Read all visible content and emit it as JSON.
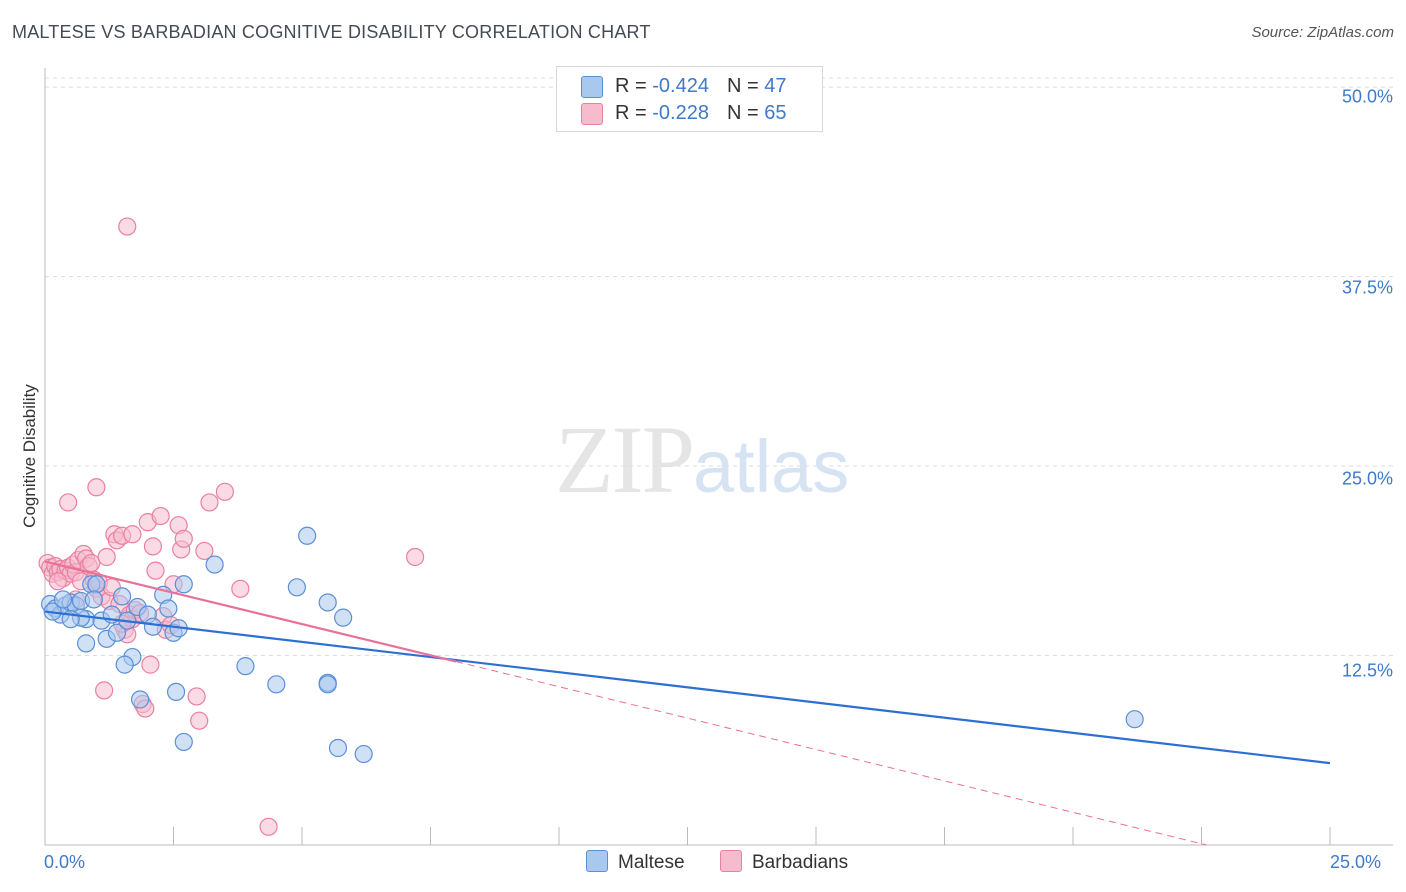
{
  "title": "MALTESE VS BARBADIAN COGNITIVE DISABILITY CORRELATION CHART",
  "source": "Source: ZipAtlas.com",
  "watermark": {
    "zip": "ZIP",
    "atlas": "atlas"
  },
  "legend": {
    "rows": [
      {
        "r_label": "R = ",
        "r_value": "-0.424",
        "n_label": "N = ",
        "n_value": "47"
      },
      {
        "r_label": "R = ",
        "r_value": "-0.228",
        "n_label": "N = ",
        "n_value": "65"
      }
    ]
  },
  "colors": {
    "maltese_fill": "#a9c8ee",
    "maltese_stroke": "#5b8fd6",
    "maltese_line": "#2d6fd2",
    "barbadian_fill": "#f6bccd",
    "barbadian_stroke": "#e9809f",
    "barbadian_line": "#e8709a",
    "tick": "#3f7ac9",
    "grid": "#dddddd"
  },
  "chart_data": {
    "type": "scatter",
    "title": "MALTESE VS BARBADIAN COGNITIVE DISABILITY CORRELATION CHART",
    "xlabel": "",
    "ylabel": "Cognitive Disability",
    "xlim": [
      0,
      25
    ],
    "ylim": [
      0,
      50
    ],
    "x_tick_labels": [
      "0.0%",
      "25.0%"
    ],
    "y_ticks": [
      12.5,
      25.0,
      37.5,
      50.0
    ],
    "y_tick_labels": [
      "12.5%",
      "25.0%",
      "37.5%",
      "50.0%"
    ],
    "grid": true,
    "legend_position": "bottom",
    "series": [
      {
        "name": "Maltese",
        "r": -0.424,
        "n": 47,
        "trend": {
          "x": [
            0,
            25
          ],
          "y": [
            15.4,
            5.4
          ],
          "style": "solid"
        },
        "points": [
          [
            0.1,
            15.9
          ],
          [
            0.2,
            15.6
          ],
          [
            0.3,
            15.2
          ],
          [
            0.4,
            15.8
          ],
          [
            0.5,
            16.0
          ],
          [
            0.6,
            15.8
          ],
          [
            0.7,
            16.1
          ],
          [
            0.8,
            14.9
          ],
          [
            0.7,
            15.0
          ],
          [
            0.9,
            17.2
          ],
          [
            1.0,
            17.2
          ],
          [
            1.1,
            14.8
          ],
          [
            1.2,
            13.6
          ],
          [
            0.8,
            13.3
          ],
          [
            1.3,
            15.2
          ],
          [
            1.5,
            16.4
          ],
          [
            1.4,
            14.0
          ],
          [
            1.6,
            14.8
          ],
          [
            1.7,
            12.4
          ],
          [
            1.55,
            11.9
          ],
          [
            1.8,
            15.7
          ],
          [
            2.0,
            15.2
          ],
          [
            2.1,
            14.4
          ],
          [
            2.3,
            16.5
          ],
          [
            2.5,
            14.0
          ],
          [
            2.4,
            15.6
          ],
          [
            2.6,
            14.3
          ],
          [
            2.7,
            17.2
          ],
          [
            3.3,
            18.5
          ],
          [
            2.55,
            10.1
          ],
          [
            1.85,
            9.6
          ],
          [
            2.7,
            6.8
          ],
          [
            3.9,
            11.8
          ],
          [
            4.5,
            10.6
          ],
          [
            4.9,
            17.0
          ],
          [
            5.1,
            20.4
          ],
          [
            5.5,
            10.7
          ],
          [
            5.5,
            10.6
          ],
          [
            5.5,
            16.0
          ],
          [
            5.8,
            15.0
          ],
          [
            5.7,
            6.4
          ],
          [
            6.2,
            6.0
          ],
          [
            0.15,
            15.4
          ],
          [
            0.35,
            16.2
          ],
          [
            21.2,
            8.3
          ],
          [
            0.5,
            14.9
          ],
          [
            0.95,
            16.2
          ]
        ]
      },
      {
        "name": "Barbadians",
        "r": -0.228,
        "n": 65,
        "trend": {
          "x": [
            0,
            8
          ],
          "y": [
            18.7,
            12.1
          ],
          "style": "solid"
        },
        "trend_extension": {
          "x": [
            8,
            22.6
          ],
          "y": [
            12.1,
            0.0
          ],
          "style": "dashed"
        },
        "points": [
          [
            0.05,
            18.6
          ],
          [
            0.1,
            18.3
          ],
          [
            0.15,
            17.9
          ],
          [
            0.2,
            18.4
          ],
          [
            0.25,
            18.0
          ],
          [
            0.3,
            18.2
          ],
          [
            0.35,
            17.6
          ],
          [
            0.4,
            18.1
          ],
          [
            0.45,
            18.3
          ],
          [
            0.5,
            17.9
          ],
          [
            0.55,
            18.5
          ],
          [
            0.6,
            18.0
          ],
          [
            0.65,
            18.8
          ],
          [
            0.7,
            17.4
          ],
          [
            0.75,
            19.2
          ],
          [
            0.8,
            18.9
          ],
          [
            0.85,
            18.4
          ],
          [
            0.9,
            18.6
          ],
          [
            0.95,
            17.5
          ],
          [
            1.0,
            16.9
          ],
          [
            1.05,
            17.3
          ],
          [
            1.1,
            16.4
          ],
          [
            1.2,
            19.0
          ],
          [
            1.25,
            16.1
          ],
          [
            1.3,
            17.0
          ],
          [
            1.35,
            20.5
          ],
          [
            1.4,
            20.1
          ],
          [
            1.45,
            15.9
          ],
          [
            1.5,
            20.4
          ],
          [
            1.55,
            14.2
          ],
          [
            1.6,
            13.9
          ],
          [
            1.65,
            15.2
          ],
          [
            1.7,
            14.9
          ],
          [
            1.75,
            15.5
          ],
          [
            1.85,
            15.3
          ],
          [
            1.9,
            9.3
          ],
          [
            1.95,
            9.0
          ],
          [
            2.0,
            21.3
          ],
          [
            2.05,
            11.9
          ],
          [
            2.1,
            19.7
          ],
          [
            2.15,
            18.1
          ],
          [
            2.25,
            21.7
          ],
          [
            2.3,
            15.1
          ],
          [
            2.35,
            14.2
          ],
          [
            2.45,
            14.5
          ],
          [
            2.6,
            21.1
          ],
          [
            2.65,
            19.5
          ],
          [
            2.7,
            20.2
          ],
          [
            2.95,
            9.8
          ],
          [
            3.0,
            8.2
          ],
          [
            3.1,
            19.4
          ],
          [
            3.2,
            22.6
          ],
          [
            3.5,
            23.3
          ],
          [
            3.8,
            16.9
          ],
          [
            4.35,
            1.2
          ],
          [
            7.2,
            19.0
          ],
          [
            1.0,
            23.6
          ],
          [
            1.6,
            40.8
          ],
          [
            0.45,
            22.6
          ],
          [
            1.15,
            10.2
          ],
          [
            0.25,
            17.4
          ],
          [
            1.5,
            14.6
          ],
          [
            0.6,
            16.2
          ],
          [
            1.7,
            20.5
          ],
          [
            2.5,
            17.2
          ]
        ]
      }
    ]
  }
}
